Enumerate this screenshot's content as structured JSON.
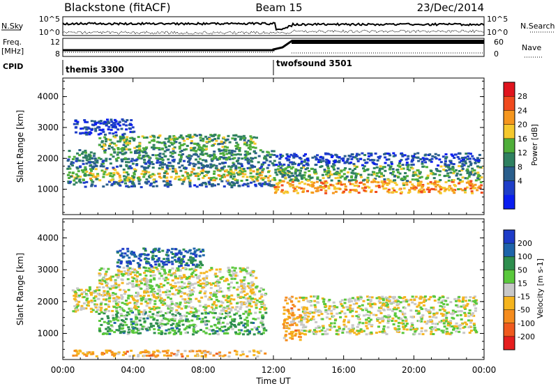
{
  "header": {
    "station": "Blackstone (fitACF)",
    "beam": "Beam 15",
    "date": "23/Dec/2014"
  },
  "status_panels": {
    "nsky_label": "N.Sky",
    "nsky_ticks": [
      "10^5",
      "10^0"
    ],
    "nsearch_label": "N.Search",
    "nsearch_ticks": [
      "10^5",
      "10^0"
    ],
    "freq_label_top": "Freq.",
    "freq_label_unit": "[MHz]",
    "freq_ticks": [
      "12",
      "8"
    ],
    "nave_label": "Nave",
    "nave_ticks": [
      "60",
      "0"
    ],
    "cpid_label": "CPID",
    "cpid_segments": [
      {
        "name": "themis 3300",
        "start_h": 0,
        "end_h": 12.1
      },
      {
        "name": "twofsound 3501",
        "start_h": 12.1,
        "end_h": 24
      }
    ]
  },
  "power_colorbar": {
    "label": "Power [dB]",
    "ticks": [
      "28",
      "24",
      "20",
      "16",
      "12",
      "8",
      "4"
    ],
    "colors": [
      "#e0141e",
      "#f04a1e",
      "#f5961e",
      "#f5c82d",
      "#4fae3a",
      "#2f8060",
      "#2a5e8c",
      "#1e3ec8",
      "#0a1ef0"
    ]
  },
  "velocity_colorbar": {
    "label": "Velocity [m s-1]",
    "ticks": [
      "200",
      "100",
      "50",
      "15",
      "-15",
      "-50",
      "-100",
      "-200"
    ],
    "colors": [
      "#1e3cc8",
      "#1e64aa",
      "#2e8e4e",
      "#5ac83c",
      "#c8c8c8",
      "#f5b41e",
      "#f58c1e",
      "#f05a1e",
      "#e61e1e"
    ]
  },
  "chart_data": {
    "type": "heatmap",
    "x_axis": {
      "label": "Time UT",
      "ticks": [
        "00:00",
        "04:00",
        "08:00",
        "12:00",
        "16:00",
        "20:00",
        "00:00"
      ],
      "range_hours": [
        0,
        24
      ]
    },
    "panels": [
      {
        "name": "power",
        "ylabel": "Slant Range [km]",
        "yticks": [
          "4000",
          "3000",
          "2000",
          "1000"
        ],
        "ylim": [
          180,
          4600
        ],
        "bands": [
          {
            "t": [
              0.2,
              12.0
            ],
            "r": [
              1100,
              1300
            ],
            "level": 0.25
          },
          {
            "t": [
              0.2,
              12.0
            ],
            "r": [
              1300,
              1700
            ],
            "level": 0.55
          },
          {
            "t": [
              0.2,
              12.0
            ],
            "r": [
              1700,
              2000
            ],
            "level": 0.3
          },
          {
            "t": [
              0.2,
              12.0
            ],
            "r": [
              2000,
              2300
            ],
            "level": 0.4
          },
          {
            "t": [
              2.0,
              11.0
            ],
            "r": [
              2300,
              2800
            ],
            "level": 0.45
          },
          {
            "t": [
              0.5,
              4.0
            ],
            "r": [
              2800,
              3300
            ],
            "level": 0.15
          },
          {
            "t": [
              12.0,
              23.8
            ],
            "r": [
              900,
              1300
            ],
            "level": 0.7
          },
          {
            "t": [
              12.0,
              23.8
            ],
            "r": [
              1300,
              1800
            ],
            "level": 0.45
          },
          {
            "t": [
              12.0,
              23.8
            ],
            "r": [
              1800,
              2200
            ],
            "level": 0.2
          }
        ]
      },
      {
        "name": "velocity",
        "ylabel": "Slant Range [km]",
        "yticks": [
          "4000",
          "3000",
          "2000",
          "1000"
        ],
        "ylim": [
          180,
          4600
        ],
        "bands": [
          {
            "t": [
              0.5,
              11.5
            ],
            "r": [
              300,
              500
            ],
            "level": 0.35
          },
          {
            "t": [
              2.0,
              11.5
            ],
            "r": [
              1000,
              1700
            ],
            "level": 0.65
          },
          {
            "t": [
              0.5,
              11.5
            ],
            "r": [
              1700,
              2500
            ],
            "level": 0.5
          },
          {
            "t": [
              2.0,
              11.0
            ],
            "r": [
              2500,
              3100
            ],
            "level": 0.5
          },
          {
            "t": [
              3.0,
              8.0
            ],
            "r": [
              3100,
              3700
            ],
            "level": 0.85
          },
          {
            "t": [
              12.5,
              13.5
            ],
            "r": [
              800,
              2200
            ],
            "level": 0.35
          },
          {
            "t": [
              13.5,
              23.5
            ],
            "r": [
              1000,
              2200
            ],
            "level": 0.5
          }
        ]
      }
    ]
  }
}
